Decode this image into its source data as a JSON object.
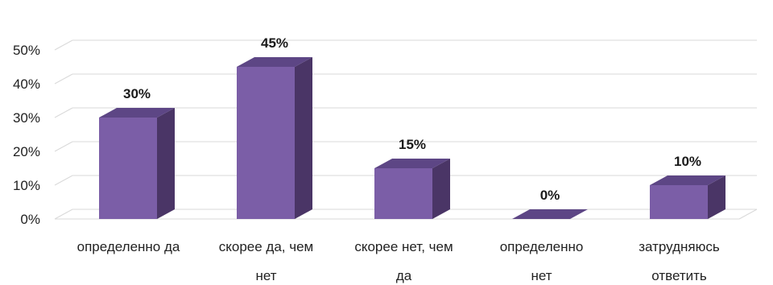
{
  "chart_data": {
    "type": "bar",
    "style": "3d-column",
    "categories": [
      [
        "определенно да"
      ],
      [
        "скорее да, чем",
        "нет"
      ],
      [
        "скорее нет, чем",
        "да"
      ],
      [
        "определенно",
        "нет"
      ],
      [
        "затрудняюсь",
        "ответить"
      ]
    ],
    "values": [
      30,
      45,
      15,
      0,
      10
    ],
    "data_labels": [
      "30%",
      "45%",
      "15%",
      "0%",
      "10%"
    ],
    "yticks": [
      "0%",
      "10%",
      "20%",
      "30%",
      "40%",
      "50%"
    ],
    "ylim": [
      0,
      50
    ],
    "grid": true,
    "legend": "none",
    "colors": {
      "bar_front": "#7b5ea7",
      "bar_side": "#4a3566",
      "bar_top": "#5d4685",
      "grid": "#d9d9d9"
    }
  }
}
